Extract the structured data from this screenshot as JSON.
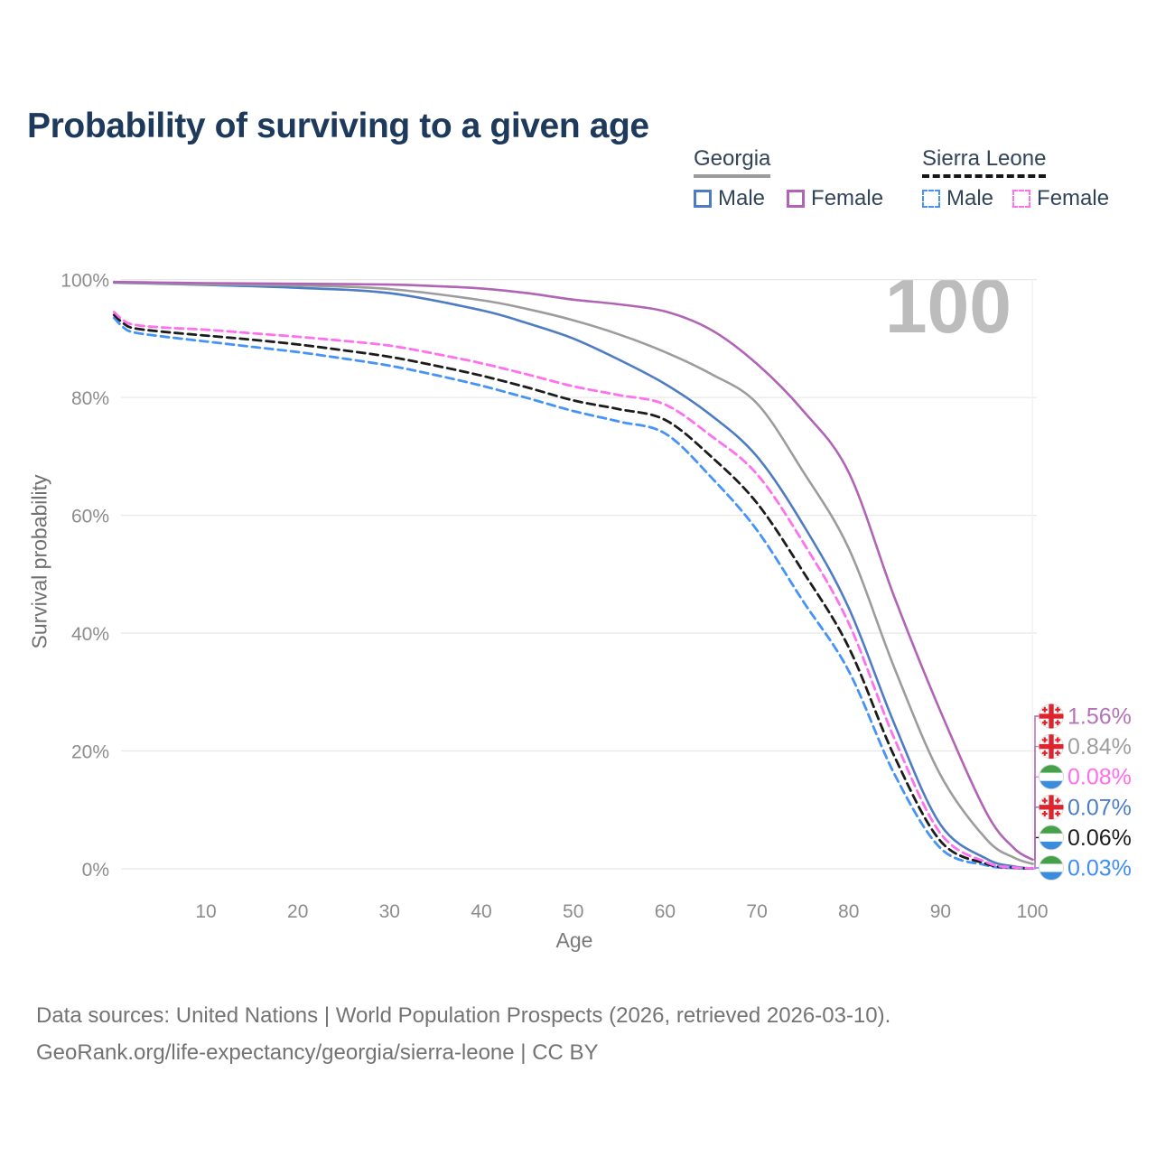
{
  "title": "Probability of surviving to a given age",
  "watermark": "100",
  "legend": {
    "georgia": {
      "label": "Georgia",
      "male": "Male",
      "female": "Female"
    },
    "sierra_leone": {
      "label": "Sierra Leone",
      "male": "Male",
      "female": "Female"
    }
  },
  "footer": {
    "line1": "Data sources: United Nations | World Population Prospects (2026, retrieved 2026-03-10).",
    "line2": "GeoRank.org/life-expectancy/georgia/sierra-leone | CC BY"
  },
  "chart_data": {
    "type": "line",
    "title": "Probability of surviving to a given age",
    "xlabel": "Age",
    "ylabel": "Survival probability",
    "xlim": [
      0,
      100
    ],
    "ylim": [
      0,
      100
    ],
    "grid": "horizontal",
    "legend_position": "top-right",
    "x_ticks": [
      {
        "value": 10,
        "label": "10"
      },
      {
        "value": 20,
        "label": "20"
      },
      {
        "value": 30,
        "label": "30"
      },
      {
        "value": 40,
        "label": "40"
      },
      {
        "value": 50,
        "label": "50"
      },
      {
        "value": 60,
        "label": "60"
      },
      {
        "value": 70,
        "label": "70"
      },
      {
        "value": 80,
        "label": "80"
      },
      {
        "value": 90,
        "label": "90"
      },
      {
        "value": 100,
        "label": "100"
      }
    ],
    "y_ticks": [
      {
        "value": 0,
        "label": "0%"
      },
      {
        "value": 20,
        "label": "20%"
      },
      {
        "value": 40,
        "label": "40%"
      },
      {
        "value": 60,
        "label": "60%"
      },
      {
        "value": 80,
        "label": "80%"
      },
      {
        "value": 100,
        "label": "100%"
      }
    ],
    "series": [
      {
        "id": "georgia-male",
        "name": "Georgia Male",
        "country": "georgia",
        "style": "solid",
        "color": "#4e7cc3",
        "end_label": "0.07%",
        "label_color": "#4d7ec5",
        "points": [
          [
            0,
            99.5
          ],
          [
            5,
            99.3
          ],
          [
            10,
            99.1
          ],
          [
            20,
            98.6
          ],
          [
            30,
            97.7
          ],
          [
            40,
            94.8
          ],
          [
            45,
            92.6
          ],
          [
            50,
            90.0
          ],
          [
            55,
            86.4
          ],
          [
            60,
            82.3
          ],
          [
            65,
            77.0
          ],
          [
            70,
            70.0
          ],
          [
            75,
            58.5
          ],
          [
            80,
            44.3
          ],
          [
            85,
            24.5
          ],
          [
            90,
            7.5
          ],
          [
            95,
            1.7
          ],
          [
            98,
            0.4
          ],
          [
            100,
            0.07
          ]
        ]
      },
      {
        "id": "georgia-total",
        "name": "Georgia Total",
        "country": "georgia",
        "style": "solid",
        "color": "#9c9c9c",
        "end_label": "0.84%",
        "label_color": "#9e9e9e",
        "points": [
          [
            0,
            99.6
          ],
          [
            5,
            99.35
          ],
          [
            10,
            99.2
          ],
          [
            20,
            99.0
          ],
          [
            30,
            98.4
          ],
          [
            40,
            96.5
          ],
          [
            45,
            95.0
          ],
          [
            50,
            93.1
          ],
          [
            55,
            90.7
          ],
          [
            60,
            87.7
          ],
          [
            65,
            84.0
          ],
          [
            70,
            79.0
          ],
          [
            75,
            67.5
          ],
          [
            80,
            54.4
          ],
          [
            85,
            34.0
          ],
          [
            90,
            15.9
          ],
          [
            95,
            5.0
          ],
          [
            98,
            1.9
          ],
          [
            100,
            0.84
          ]
        ]
      },
      {
        "id": "georgia-female",
        "name": "Georgia Female",
        "country": "georgia",
        "style": "solid",
        "color": "#b164b6",
        "end_label": "1.56%",
        "label_color": "#b473b9",
        "points": [
          [
            0,
            99.6
          ],
          [
            5,
            99.5
          ],
          [
            10,
            99.4
          ],
          [
            20,
            99.3
          ],
          [
            30,
            99.15
          ],
          [
            35,
            98.9
          ],
          [
            40,
            98.5
          ],
          [
            45,
            97.7
          ],
          [
            50,
            96.6
          ],
          [
            55,
            95.8
          ],
          [
            60,
            94.6
          ],
          [
            65,
            91.5
          ],
          [
            70,
            85.7
          ],
          [
            75,
            77.8
          ],
          [
            80,
            67.3
          ],
          [
            85,
            46.0
          ],
          [
            90,
            26.7
          ],
          [
            95,
            9.5
          ],
          [
            98,
            3.5
          ],
          [
            100,
            1.56
          ]
        ]
      },
      {
        "id": "sierra-leone-male",
        "name": "Sierra Leone Male",
        "country": "sierra_leone",
        "style": "dashed",
        "color": "#4693f8",
        "end_label": "0.03%",
        "label_color": "#3f8df6",
        "points": [
          [
            0,
            93.5
          ],
          [
            1,
            91.9
          ],
          [
            2,
            91.1
          ],
          [
            5,
            90.4
          ],
          [
            10,
            89.5
          ],
          [
            15,
            88.6
          ],
          [
            20,
            87.7
          ],
          [
            25,
            86.6
          ],
          [
            30,
            85.4
          ],
          [
            35,
            83.8
          ],
          [
            40,
            82.0
          ],
          [
            45,
            79.9
          ],
          [
            50,
            77.7
          ],
          [
            55,
            75.9
          ],
          [
            60,
            73.9
          ],
          [
            65,
            66.5
          ],
          [
            70,
            57.5
          ],
          [
            75,
            45.5
          ],
          [
            80,
            33.6
          ],
          [
            85,
            16.0
          ],
          [
            90,
            3.5
          ],
          [
            95,
            0.6
          ],
          [
            98,
            0.12
          ],
          [
            100,
            0.03
          ]
        ]
      },
      {
        "id": "sierra-leone-total",
        "name": "Sierra Leone Total",
        "country": "sierra_leone",
        "style": "dashed",
        "color": "#1c1c1c",
        "end_label": "0.06%",
        "label_color": "#1c1c1c",
        "points": [
          [
            0,
            94.0
          ],
          [
            1,
            92.6
          ],
          [
            2,
            91.8
          ],
          [
            5,
            91.2
          ],
          [
            10,
            90.5
          ],
          [
            15,
            89.8
          ],
          [
            20,
            89.0
          ],
          [
            25,
            88.0
          ],
          [
            30,
            86.9
          ],
          [
            35,
            85.4
          ],
          [
            40,
            83.7
          ],
          [
            45,
            81.7
          ],
          [
            50,
            79.5
          ],
          [
            55,
            78.0
          ],
          [
            60,
            76.2
          ],
          [
            65,
            70.0
          ],
          [
            70,
            62.1
          ],
          [
            75,
            50.5
          ],
          [
            80,
            37.6
          ],
          [
            85,
            19.0
          ],
          [
            90,
            4.7
          ],
          [
            95,
            0.85
          ],
          [
            98,
            0.2
          ],
          [
            100,
            0.06
          ]
        ]
      },
      {
        "id": "sierra-leone-female",
        "name": "Sierra Leone Female",
        "country": "sierra_leone",
        "style": "dashed",
        "color": "#ff70ee",
        "end_label": "0.08%",
        "label_color": "#ff6cee",
        "points": [
          [
            0,
            94.5
          ],
          [
            1,
            93.1
          ],
          [
            2,
            92.4
          ],
          [
            5,
            91.9
          ],
          [
            10,
            91.5
          ],
          [
            15,
            90.9
          ],
          [
            20,
            90.3
          ],
          [
            25,
            89.6
          ],
          [
            30,
            88.8
          ],
          [
            35,
            87.4
          ],
          [
            40,
            85.8
          ],
          [
            45,
            83.9
          ],
          [
            50,
            81.9
          ],
          [
            55,
            80.4
          ],
          [
            60,
            78.8
          ],
          [
            65,
            73.5
          ],
          [
            70,
            67.0
          ],
          [
            75,
            55.5
          ],
          [
            80,
            41.7
          ],
          [
            85,
            22.0
          ],
          [
            90,
            6.0
          ],
          [
            95,
            1.1
          ],
          [
            98,
            0.25
          ],
          [
            100,
            0.08
          ]
        ]
      }
    ],
    "colors": {
      "grid": "#e8e8e8",
      "tick_text": "#8c8c8c",
      "flag_georgia_red": "#e0242f",
      "flag_sl_green": "#44a14a",
      "flag_sl_blue": "#3a8ddd"
    }
  }
}
